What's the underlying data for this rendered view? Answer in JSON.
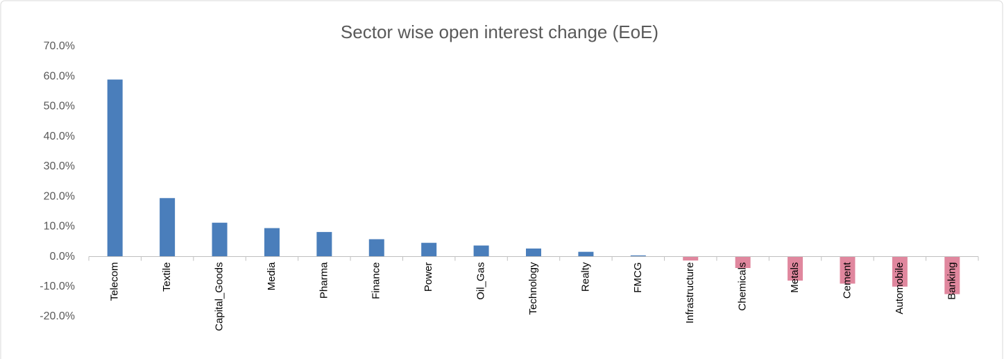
{
  "chart_data": {
    "type": "bar",
    "title": "Sector wise open interest change (EoE)",
    "categories": [
      "Telecom",
      "Textile",
      "Capital_Goods",
      "Media",
      "Pharma",
      "Finance",
      "Power",
      "Oil_Gas",
      "Technology",
      "Realty",
      "FMCG",
      "Infrastructure",
      "Chemicals",
      "Metals",
      "Cement",
      "Automobile",
      "Banking"
    ],
    "values": [
      59.0,
      19.5,
      11.3,
      9.5,
      8.2,
      5.8,
      4.6,
      3.7,
      2.7,
      1.6,
      0.4,
      -1.3,
      -3.8,
      -8.0,
      -9.0,
      -10.0,
      -12.5
    ],
    "color": "#4a7ebb",
    "negative_color": "#e0879e",
    "ylim": [
      -20,
      70
    ],
    "yticks": [
      {
        "value": -20,
        "label": "-20.0%"
      },
      {
        "value": -10,
        "label": "-10.0%"
      },
      {
        "value": 0,
        "label": "0.0%"
      },
      {
        "value": 10,
        "label": "10.0%"
      },
      {
        "value": 20,
        "label": "20.0%"
      },
      {
        "value": 30,
        "label": "30.0%"
      },
      {
        "value": 40,
        "label": "40.0%"
      },
      {
        "value": 50,
        "label": "50.0%"
      },
      {
        "value": 60,
        "label": "60.0%"
      },
      {
        "value": 70,
        "label": "70.0%"
      }
    ],
    "grid": false
  }
}
